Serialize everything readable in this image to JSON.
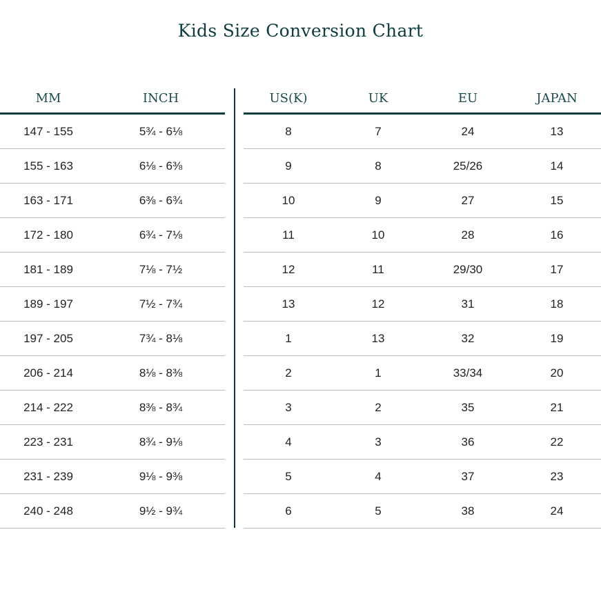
{
  "title": "Kids Size Conversion Chart",
  "left_headers": [
    "MM",
    "INCH"
  ],
  "right_headers": [
    "US(K)",
    "UK",
    "EU",
    "JAPAN"
  ],
  "rows": [
    {
      "mm": "147  -  155",
      "inch": "5¾  -  6⅛",
      "us": "8",
      "uk": "7",
      "eu": "24",
      "jp": "13"
    },
    {
      "mm": "155  -  163",
      "inch": "6⅛  -  6⅜",
      "us": "9",
      "uk": "8",
      "eu": "25/26",
      "jp": "14"
    },
    {
      "mm": "163  -  171",
      "inch": "6⅜  -  6¾",
      "us": "10",
      "uk": "9",
      "eu": "27",
      "jp": "15"
    },
    {
      "mm": "172  -  180",
      "inch": "6¾  -  7⅛",
      "us": "11",
      "uk": "10",
      "eu": "28",
      "jp": "16"
    },
    {
      "mm": "181  -  189",
      "inch": "7⅛  -  7½",
      "us": "12",
      "uk": "11",
      "eu": "29/30",
      "jp": "17"
    },
    {
      "mm": "189  -  197",
      "inch": "7½  -  7¾",
      "us": "13",
      "uk": "12",
      "eu": "31",
      "jp": "18"
    },
    {
      "mm": "197  -  205",
      "inch": "7¾  -  8⅛",
      "us": "1",
      "uk": "13",
      "eu": "32",
      "jp": "19"
    },
    {
      "mm": "206  -  214",
      "inch": "8⅛  -  8⅜",
      "us": "2",
      "uk": "1",
      "eu": "33/34",
      "jp": "20"
    },
    {
      "mm": "214  -  222",
      "inch": "8⅜  -  8¾",
      "us": "3",
      "uk": "2",
      "eu": "35",
      "jp": "21"
    },
    {
      "mm": "223  -  231",
      "inch": "8¾  -  9⅛",
      "us": "4",
      "uk": "3",
      "eu": "36",
      "jp": "22"
    },
    {
      "mm": "231  -  239",
      "inch": "9⅛  -  9⅜",
      "us": "5",
      "uk": "4",
      "eu": "37",
      "jp": "23"
    },
    {
      "mm": "240  -  248",
      "inch": "9½  -  9¾",
      "us": "6",
      "uk": "5",
      "eu": "38",
      "jp": "24"
    }
  ]
}
